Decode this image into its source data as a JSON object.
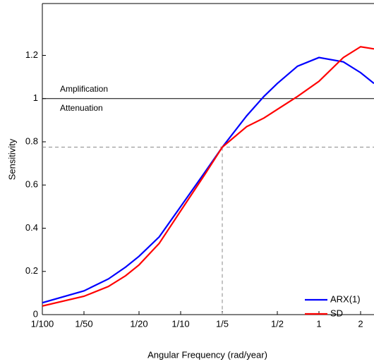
{
  "chart_data": {
    "type": "line",
    "xlabel": "Angular Frequency (rad/year)",
    "ylabel": "Sensitivity",
    "x": [
      0.01,
      0.02,
      0.03,
      0.04,
      0.05,
      0.07,
      0.1,
      0.15,
      0.2,
      0.3,
      0.4,
      0.5,
      0.7,
      1,
      1.5,
      2,
      2.5
    ],
    "series": [
      {
        "name": "ARX(1)",
        "color": "#0000ff",
        "values": [
          0.055,
          0.11,
          0.165,
          0.22,
          0.27,
          0.36,
          0.5,
          0.66,
          0.775,
          0.92,
          1.01,
          1.07,
          1.15,
          1.19,
          1.17,
          1.12,
          1.07
        ]
      },
      {
        "name": "SD",
        "color": "#ff0000",
        "values": [
          0.04,
          0.085,
          0.13,
          0.18,
          0.23,
          0.33,
          0.48,
          0.65,
          0.775,
          0.87,
          0.91,
          0.95,
          1.01,
          1.08,
          1.19,
          1.24,
          1.23
        ]
      }
    ],
    "xlim": [
      0.01,
      2.5
    ],
    "xscale": "log",
    "xticks": [
      {
        "value": 0.01,
        "label": "1/100"
      },
      {
        "value": 0.02,
        "label": "1/50"
      },
      {
        "value": 0.05,
        "label": "1/20"
      },
      {
        "value": 0.1,
        "label": "1/10"
      },
      {
        "value": 0.2,
        "label": "1/5"
      },
      {
        "value": 0.5,
        "label": "1/2"
      },
      1,
      2
    ],
    "ylim": [
      0,
      1.44
    ],
    "yticks": [
      0,
      0.2,
      0.4,
      0.6,
      0.8,
      1,
      1.2
    ],
    "reference_line": {
      "y": 1,
      "label_above": "Amplification",
      "label_below": "Attenuation"
    },
    "crossover": {
      "x": 0.2,
      "y": 0.775
    },
    "legend": "lower right"
  }
}
